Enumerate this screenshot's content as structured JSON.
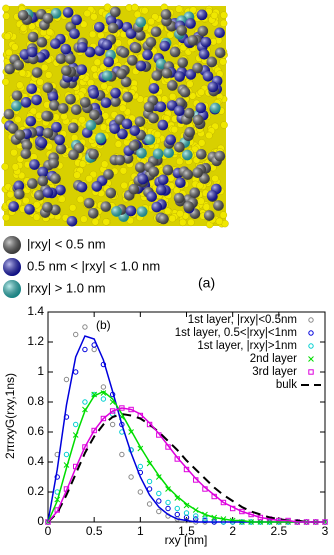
{
  "figure_a": {
    "legend": [
      "|rxy| < 0.5 nm",
      "0.5 nm < |rxy| < 1.0 nm",
      "|rxy| > 1.0 nm"
    ],
    "legend_colors": [
      "#555555",
      "#1010c8",
      "#20c8c8"
    ],
    "label": "(a)"
  },
  "chart_data": {
    "type": "line",
    "annotation": "(b)",
    "xlabel": "rxy [nm]",
    "ylabel": "2πrxyG(rxy,1ns)",
    "xlim": [
      0,
      3
    ],
    "xticks": [
      0,
      0.5,
      1,
      1.5,
      2,
      2.5,
      3
    ],
    "ylim": [
      0,
      1.4
    ],
    "yticks": [
      0,
      0.2,
      0.4,
      0.6,
      0.8,
      1,
      1.2,
      1.4
    ],
    "legend": "upper right",
    "x": [
      0,
      0.1,
      0.2,
      0.3,
      0.4,
      0.5,
      0.6,
      0.7,
      0.8,
      0.9,
      1,
      1.1,
      1.2,
      1.3,
      1.4,
      1.5,
      1.6,
      1.7,
      1.8,
      1.9,
      2,
      2.1,
      2.2,
      2.3,
      2.4,
      2.5,
      2.6,
      2.7,
      2.8,
      2.9,
      3
    ],
    "series": [
      {
        "name": "1st layer, |rxy|<0.5nm",
        "style": "points",
        "marker": "circle",
        "color": "#888888",
        "values": [
          0,
          0.45,
          0.95,
          1.25,
          1.3,
          1.15,
          0.9,
          0.65,
          0.45,
          0.3,
          0.2,
          0.12,
          0.07,
          0.04,
          0.02,
          0.01,
          0,
          0,
          0,
          0,
          0,
          0,
          0,
          0,
          0,
          0,
          0,
          0,
          0,
          0,
          0
        ]
      },
      {
        "name": "1st layer, 0.5<|rxy|<1nm",
        "style": "points",
        "marker": "circle",
        "color": "#0000dd",
        "values": [
          0,
          0.3,
          0.7,
          1.0,
          1.15,
          1.18,
          1.05,
          0.85,
          0.65,
          0.48,
          0.33,
          0.22,
          0.14,
          0.09,
          0.05,
          0.03,
          0.02,
          0.01,
          0,
          0,
          0,
          0,
          0,
          0,
          0,
          0,
          0,
          0,
          0,
          0,
          0
        ]
      },
      {
        "name": "1st layer, |rxy|>1nm",
        "style": "points",
        "marker": "circle",
        "color": "#00d0d0",
        "values": [
          0,
          0.2,
          0.45,
          0.65,
          0.8,
          0.85,
          0.82,
          0.72,
          0.6,
          0.48,
          0.37,
          0.27,
          0.19,
          0.13,
          0.09,
          0.06,
          0.04,
          0.02,
          0.01,
          0,
          0,
          0,
          0,
          0,
          0,
          0,
          0,
          0,
          0,
          0,
          0
        ]
      },
      {
        "name": "2nd layer",
        "style": "points",
        "marker": "x",
        "color": "#00dd00",
        "values": [
          0,
          0.15,
          0.38,
          0.58,
          0.75,
          0.85,
          0.86,
          0.8,
          0.7,
          0.6,
          0.49,
          0.39,
          0.3,
          0.22,
          0.16,
          0.11,
          0.08,
          0.05,
          0.03,
          0.02,
          0.01,
          0,
          0,
          0,
          0,
          0,
          0,
          0,
          0,
          0,
          0
        ]
      },
      {
        "name": "3rd layer",
        "style": "points",
        "marker": "square",
        "color": "#dd00dd",
        "values": [
          0,
          0.08,
          0.22,
          0.37,
          0.5,
          0.61,
          0.69,
          0.74,
          0.76,
          0.75,
          0.71,
          0.65,
          0.58,
          0.5,
          0.42,
          0.35,
          0.28,
          0.22,
          0.17,
          0.13,
          0.09,
          0.07,
          0.05,
          0.03,
          0.02,
          0.01,
          0.01,
          0,
          0,
          0,
          0
        ]
      },
      {
        "name": "bulk",
        "style": "dashed",
        "color": "#000000",
        "values": [
          0,
          0.06,
          0.18,
          0.32,
          0.46,
          0.57,
          0.65,
          0.7,
          0.72,
          0.71,
          0.69,
          0.65,
          0.6,
          0.54,
          0.48,
          0.41,
          0.35,
          0.29,
          0.23,
          0.18,
          0.14,
          0.1,
          0.07,
          0.05,
          0.03,
          0.02,
          0.01,
          0.01,
          0,
          0,
          0
        ]
      },
      {
        "style": "line",
        "color": "#0000dd",
        "values": [
          0,
          0.35,
          0.78,
          1.1,
          1.24,
          1.22,
          1.08,
          0.87,
          0.65,
          0.46,
          0.3,
          0.18,
          0.1,
          0.05,
          0.02,
          0.01,
          0,
          0,
          0,
          0,
          0,
          0,
          0,
          0,
          0,
          0,
          0,
          0,
          0,
          0,
          0
        ]
      },
      {
        "style": "line",
        "color": "#00dd00",
        "values": [
          0,
          0.14,
          0.36,
          0.57,
          0.74,
          0.84,
          0.87,
          0.82,
          0.72,
          0.61,
          0.5,
          0.4,
          0.31,
          0.23,
          0.17,
          0.12,
          0.08,
          0.05,
          0.03,
          0.02,
          0.01,
          0.01,
          0,
          0,
          0,
          0,
          0,
          0,
          0,
          0,
          0
        ]
      },
      {
        "style": "line",
        "color": "#dd00dd",
        "values": [
          0,
          0.07,
          0.21,
          0.36,
          0.5,
          0.61,
          0.69,
          0.74,
          0.76,
          0.75,
          0.72,
          0.66,
          0.59,
          0.51,
          0.43,
          0.36,
          0.29,
          0.23,
          0.18,
          0.13,
          0.1,
          0.07,
          0.05,
          0.03,
          0.02,
          0.01,
          0.01,
          0,
          0,
          0,
          0
        ]
      }
    ]
  }
}
